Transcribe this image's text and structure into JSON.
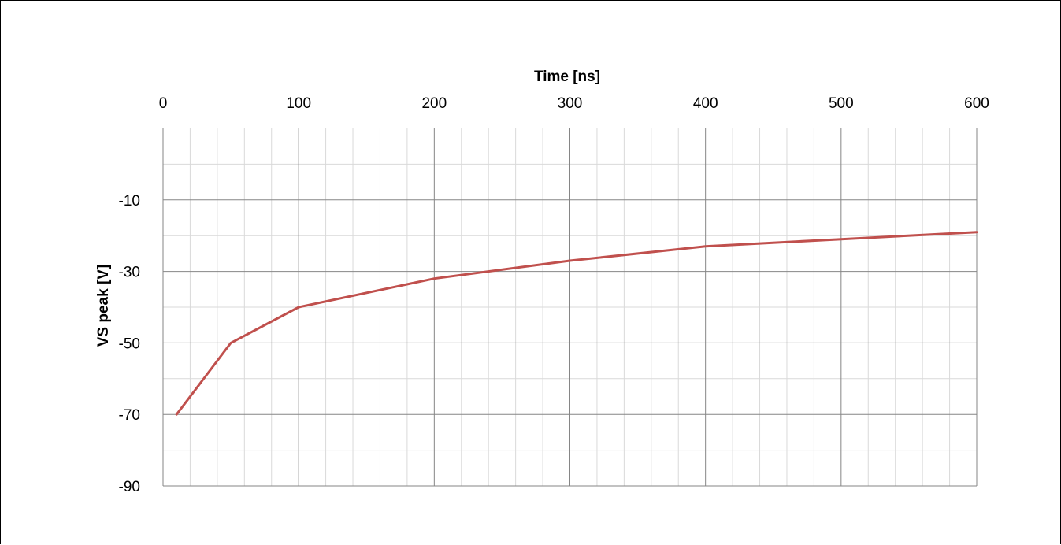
{
  "chart_data": {
    "type": "line",
    "title": "",
    "xlabel": "Time [ns]",
    "ylabel": "VS peak [V]",
    "x_axis_position": "top",
    "xlim": [
      0,
      600
    ],
    "ylim": [
      -90,
      10
    ],
    "x_ticks": [
      0,
      100,
      200,
      300,
      400,
      500,
      600
    ],
    "x_tick_labels": [
      "0",
      "100",
      "200",
      "300",
      "400",
      "500",
      "600"
    ],
    "y_ticks": [
      -10,
      -30,
      -50,
      -70,
      -90
    ],
    "y_tick_labels": [
      "-10",
      "-30",
      "-50",
      "-70",
      "-90"
    ],
    "grid": true,
    "legend": "none",
    "series": [
      {
        "color": "#c0504d",
        "x": [
          10,
          50,
          100,
          200,
          300,
          400,
          500,
          600
        ],
        "y": [
          -70,
          -50,
          -40,
          -32,
          -27,
          -23,
          -21,
          -19
        ]
      }
    ]
  }
}
